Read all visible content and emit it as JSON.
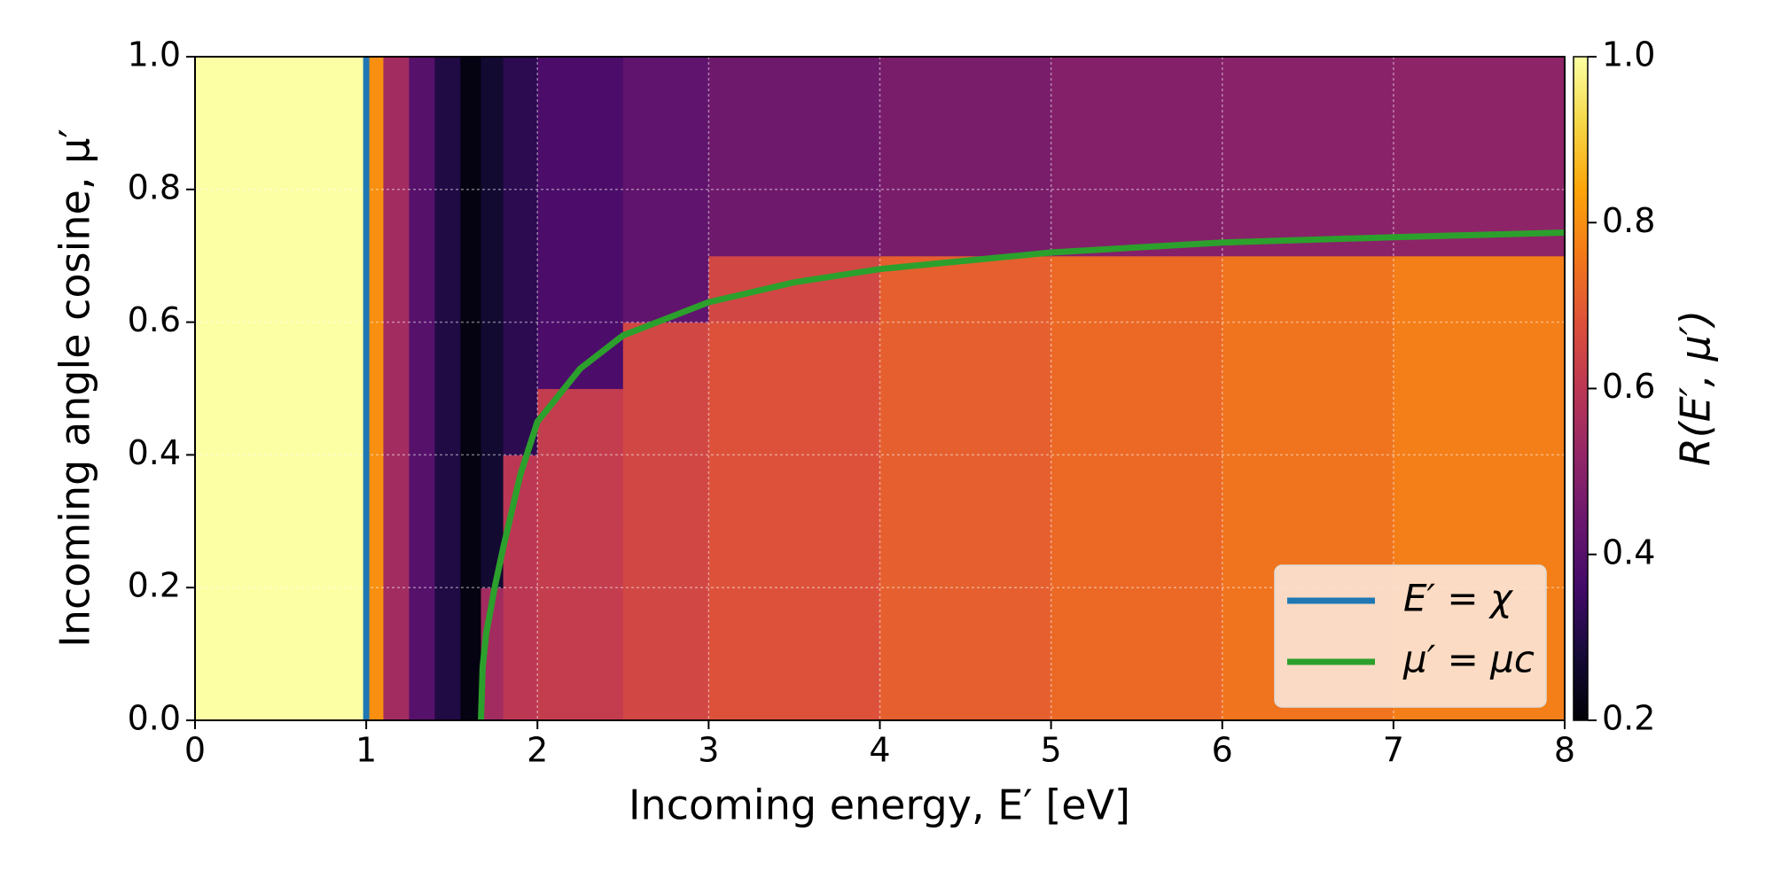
{
  "chart_data": {
    "type": "heatmap",
    "xlabel": "Incoming energy, E′ [eV]",
    "ylabel": "Incoming angle cosine, μ′",
    "colorbar_label": "R(E′, μ′)",
    "colormap": "inferno",
    "xlim": [
      0,
      8
    ],
    "xticks": [
      0,
      1,
      2,
      3,
      4,
      5,
      6,
      7,
      8
    ],
    "ylim": [
      0,
      1
    ],
    "yticks": [
      {
        "value": 0,
        "label": "0.0"
      },
      0.2,
      0.4,
      0.6,
      0.8,
      {
        "value": 1,
        "label": "1.0"
      }
    ],
    "clim": [
      0.2,
      1
    ],
    "cticks": [
      0.2,
      0.4,
      0.6,
      0.8,
      {
        "value": 1,
        "label": "1.0"
      }
    ],
    "grid": true,
    "legend": "lower right",
    "heatmap": {
      "x_edges": [
        0,
        1,
        1.1,
        1.25,
        1.4,
        1.55,
        1.67,
        1.8,
        2,
        2.5,
        3,
        4,
        5,
        6,
        7,
        8
      ],
      "y_edges": [
        0,
        0.1,
        0.2,
        0.3,
        0.4,
        0.5,
        0.6,
        0.7,
        0.8,
        0.9,
        1
      ],
      "values": [
        [
          1,
          0.8,
          0.55,
          0.4,
          0.3,
          0.22,
          0.55,
          0.6,
          0.62,
          0.65,
          0.68,
          0.71,
          0.73,
          0.75,
          0.77
        ],
        [
          1,
          0.8,
          0.55,
          0.4,
          0.3,
          0.22,
          0.55,
          0.6,
          0.62,
          0.65,
          0.68,
          0.71,
          0.73,
          0.75,
          0.77
        ],
        [
          1,
          0.8,
          0.55,
          0.4,
          0.3,
          0.22,
          0.27,
          0.6,
          0.62,
          0.65,
          0.68,
          0.71,
          0.73,
          0.75,
          0.77
        ],
        [
          1,
          0.8,
          0.55,
          0.4,
          0.3,
          0.22,
          0.27,
          0.6,
          0.62,
          0.65,
          0.68,
          0.71,
          0.73,
          0.75,
          0.77
        ],
        [
          1,
          0.8,
          0.55,
          0.4,
          0.3,
          0.22,
          0.27,
          0.32,
          0.62,
          0.65,
          0.68,
          0.71,
          0.73,
          0.75,
          0.77
        ],
        [
          1,
          0.8,
          0.55,
          0.4,
          0.3,
          0.22,
          0.27,
          0.32,
          0.38,
          0.65,
          0.68,
          0.71,
          0.73,
          0.75,
          0.77
        ],
        [
          1,
          0.8,
          0.55,
          0.4,
          0.3,
          0.22,
          0.27,
          0.32,
          0.38,
          0.42,
          0.65,
          0.71,
          0.73,
          0.75,
          0.77
        ],
        [
          1,
          0.8,
          0.55,
          0.4,
          0.3,
          0.22,
          0.27,
          0.32,
          0.38,
          0.42,
          0.45,
          0.47,
          0.49,
          0.5,
          0.51
        ],
        [
          1,
          0.8,
          0.55,
          0.4,
          0.3,
          0.22,
          0.27,
          0.32,
          0.38,
          0.42,
          0.45,
          0.47,
          0.49,
          0.5,
          0.51
        ],
        [
          1,
          0.8,
          0.55,
          0.4,
          0.3,
          0.22,
          0.27,
          0.32,
          0.38,
          0.42,
          0.45,
          0.47,
          0.49,
          0.5,
          0.51
        ]
      ]
    },
    "series": [
      {
        "name": "E′ = χ",
        "color": "#1f77b4",
        "x": [
          1,
          1
        ],
        "values": [
          0,
          1
        ]
      },
      {
        "name": "μ′ = μc",
        "color": "#2ca02c",
        "x": [
          1.67,
          1.68,
          1.7,
          1.75,
          1.8,
          1.9,
          2,
          2.25,
          2.5,
          3,
          3.5,
          4,
          5,
          6,
          7,
          8
        ],
        "values": [
          0,
          0.08,
          0.13,
          0.2,
          0.26,
          0.37,
          0.45,
          0.53,
          0.58,
          0.63,
          0.66,
          0.68,
          0.705,
          0.72,
          0.728,
          0.735
        ]
      }
    ]
  }
}
